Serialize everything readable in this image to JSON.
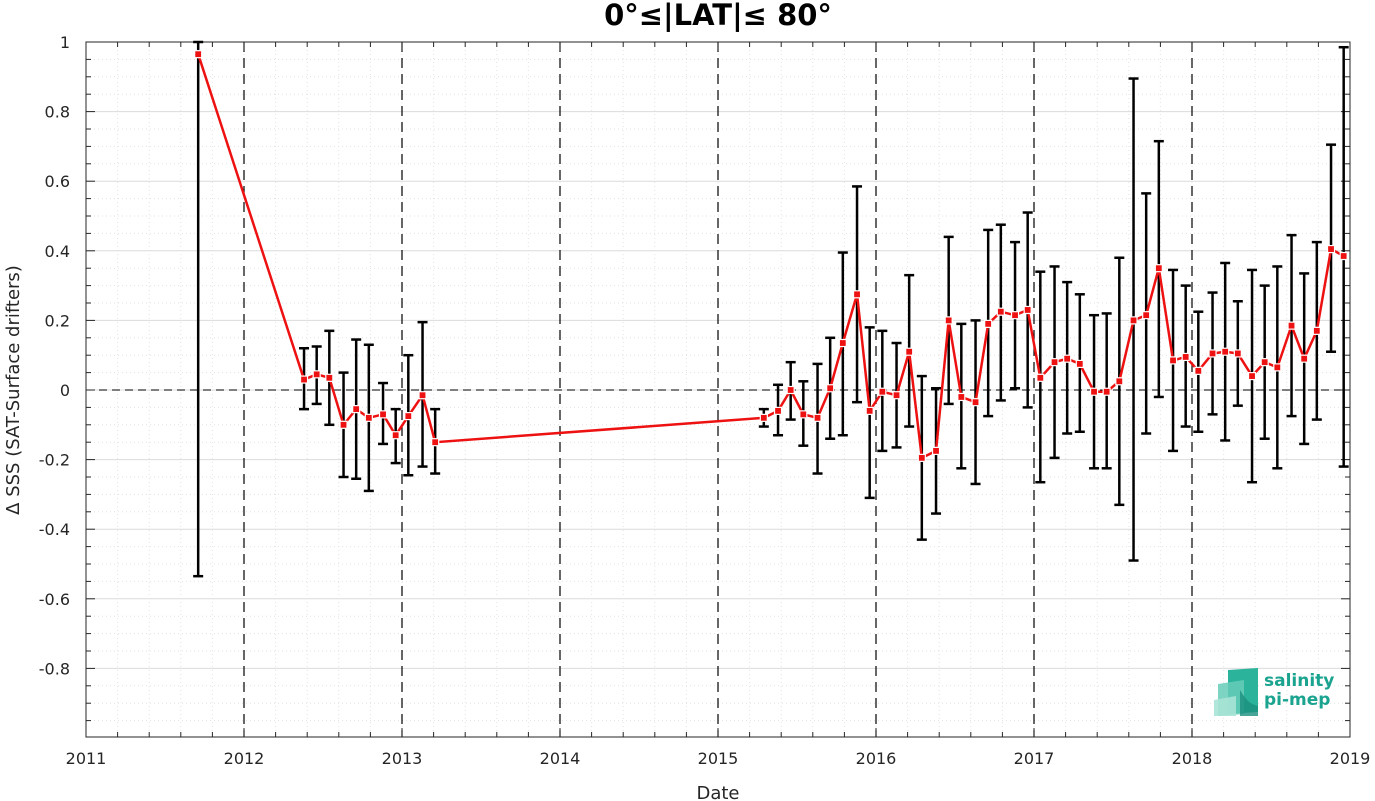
{
  "chart_data": {
    "type": "line",
    "title": "0°≤|LAT|≤ 80°",
    "xlabel": "Date",
    "ylabel": "Δ SSS (SAT-Surface drifters)",
    "xlim": [
      2011,
      2019
    ],
    "ylim": [
      -1,
      1
    ],
    "x_ticks": [
      "2011",
      "2012",
      "2013",
      "2014",
      "2015",
      "2016",
      "2017",
      "2018",
      "2019"
    ],
    "y_ticks": [
      "1",
      "0.8",
      "0.6",
      "0.4",
      "0.2",
      "0",
      "-0.2",
      "-0.4",
      "-0.6",
      "-0.8"
    ],
    "grid": true,
    "year_dividers": true,
    "zero_line": true,
    "colors": {
      "series": "#ee1111",
      "errorbar": "#000000"
    },
    "series": [
      {
        "marker": "square",
        "points": [
          {
            "x": 2011.71,
            "y": 0.965,
            "lo": -0.535,
            "hi": 1.0
          },
          {
            "x": 2012.38,
            "y": 0.03,
            "lo": -0.055,
            "hi": 0.12
          },
          {
            "x": 2012.46,
            "y": 0.045,
            "lo": -0.04,
            "hi": 0.125
          },
          {
            "x": 2012.54,
            "y": 0.035,
            "lo": -0.1,
            "hi": 0.17
          },
          {
            "x": 2012.63,
            "y": -0.1,
            "lo": -0.25,
            "hi": 0.05
          },
          {
            "x": 2012.71,
            "y": -0.055,
            "lo": -0.255,
            "hi": 0.145
          },
          {
            "x": 2012.79,
            "y": -0.08,
            "lo": -0.29,
            "hi": 0.13
          },
          {
            "x": 2012.88,
            "y": -0.07,
            "lo": -0.155,
            "hi": 0.02
          },
          {
            "x": 2012.96,
            "y": -0.13,
            "lo": -0.21,
            "hi": -0.055
          },
          {
            "x": 2013.04,
            "y": -0.075,
            "lo": -0.245,
            "hi": 0.1
          },
          {
            "x": 2013.13,
            "y": -0.015,
            "lo": -0.22,
            "hi": 0.195
          },
          {
            "x": 2013.21,
            "y": -0.15,
            "lo": -0.24,
            "hi": -0.055
          },
          {
            "x": 2015.29,
            "y": -0.08,
            "lo": -0.105,
            "hi": -0.055
          },
          {
            "x": 2015.38,
            "y": -0.06,
            "lo": -0.13,
            "hi": 0.015
          },
          {
            "x": 2015.46,
            "y": 0.0,
            "lo": -0.085,
            "hi": 0.08
          },
          {
            "x": 2015.54,
            "y": -0.07,
            "lo": -0.16,
            "hi": 0.025
          },
          {
            "x": 2015.63,
            "y": -0.08,
            "lo": -0.24,
            "hi": 0.075
          },
          {
            "x": 2015.71,
            "y": 0.005,
            "lo": -0.14,
            "hi": 0.15
          },
          {
            "x": 2015.79,
            "y": 0.135,
            "lo": -0.13,
            "hi": 0.395
          },
          {
            "x": 2015.88,
            "y": 0.275,
            "lo": -0.035,
            "hi": 0.585
          },
          {
            "x": 2015.96,
            "y": -0.06,
            "lo": -0.31,
            "hi": 0.18
          },
          {
            "x": 2016.04,
            "y": -0.005,
            "lo": -0.175,
            "hi": 0.17
          },
          {
            "x": 2016.13,
            "y": -0.015,
            "lo": -0.165,
            "hi": 0.135
          },
          {
            "x": 2016.21,
            "y": 0.11,
            "lo": -0.105,
            "hi": 0.33
          },
          {
            "x": 2016.29,
            "y": -0.195,
            "lo": -0.43,
            "hi": 0.04
          },
          {
            "x": 2016.38,
            "y": -0.175,
            "lo": -0.355,
            "hi": 0.005
          },
          {
            "x": 2016.46,
            "y": 0.2,
            "lo": -0.04,
            "hi": 0.44
          },
          {
            "x": 2016.54,
            "y": -0.02,
            "lo": -0.225,
            "hi": 0.19
          },
          {
            "x": 2016.63,
            "y": -0.035,
            "lo": -0.27,
            "hi": 0.2
          },
          {
            "x": 2016.71,
            "y": 0.19,
            "lo": -0.075,
            "hi": 0.46
          },
          {
            "x": 2016.79,
            "y": 0.225,
            "lo": -0.03,
            "hi": 0.475
          },
          {
            "x": 2016.88,
            "y": 0.215,
            "lo": 0.005,
            "hi": 0.425
          },
          {
            "x": 2016.96,
            "y": 0.23,
            "lo": -0.05,
            "hi": 0.51
          },
          {
            "x": 2017.04,
            "y": 0.035,
            "lo": -0.265,
            "hi": 0.34
          },
          {
            "x": 2017.13,
            "y": 0.08,
            "lo": -0.195,
            "hi": 0.355
          },
          {
            "x": 2017.21,
            "y": 0.09,
            "lo": -0.125,
            "hi": 0.31
          },
          {
            "x": 2017.29,
            "y": 0.075,
            "lo": -0.12,
            "hi": 0.275
          },
          {
            "x": 2017.38,
            "y": -0.005,
            "lo": -0.225,
            "hi": 0.215
          },
          {
            "x": 2017.46,
            "y": -0.005,
            "lo": -0.225,
            "hi": 0.22
          },
          {
            "x": 2017.54,
            "y": 0.025,
            "lo": -0.33,
            "hi": 0.38
          },
          {
            "x": 2017.63,
            "y": 0.2,
            "lo": -0.49,
            "hi": 0.895
          },
          {
            "x": 2017.71,
            "y": 0.215,
            "lo": -0.125,
            "hi": 0.565
          },
          {
            "x": 2017.79,
            "y": 0.35,
            "lo": -0.02,
            "hi": 0.715
          },
          {
            "x": 2017.88,
            "y": 0.085,
            "lo": -0.175,
            "hi": 0.345
          },
          {
            "x": 2017.96,
            "y": 0.095,
            "lo": -0.105,
            "hi": 0.3
          },
          {
            "x": 2018.04,
            "y": 0.055,
            "lo": -0.12,
            "hi": 0.225
          },
          {
            "x": 2018.13,
            "y": 0.105,
            "lo": -0.07,
            "hi": 0.28
          },
          {
            "x": 2018.21,
            "y": 0.11,
            "lo": -0.145,
            "hi": 0.365
          },
          {
            "x": 2018.29,
            "y": 0.105,
            "lo": -0.045,
            "hi": 0.255
          },
          {
            "x": 2018.38,
            "y": 0.04,
            "lo": -0.265,
            "hi": 0.345
          },
          {
            "x": 2018.46,
            "y": 0.08,
            "lo": -0.14,
            "hi": 0.3
          },
          {
            "x": 2018.54,
            "y": 0.065,
            "lo": -0.225,
            "hi": 0.355
          },
          {
            "x": 2018.63,
            "y": 0.185,
            "lo": -0.075,
            "hi": 0.445
          },
          {
            "x": 2018.71,
            "y": 0.09,
            "lo": -0.155,
            "hi": 0.335
          },
          {
            "x": 2018.79,
            "y": 0.17,
            "lo": -0.085,
            "hi": 0.425
          },
          {
            "x": 2018.88,
            "y": 0.405,
            "lo": 0.11,
            "hi": 0.705
          },
          {
            "x": 2018.96,
            "y": 0.385,
            "lo": -0.22,
            "hi": 0.985
          }
        ]
      }
    ]
  },
  "logo": {
    "line1": "salinity",
    "line2": "pi-mep",
    "color": "#1aa38f"
  }
}
